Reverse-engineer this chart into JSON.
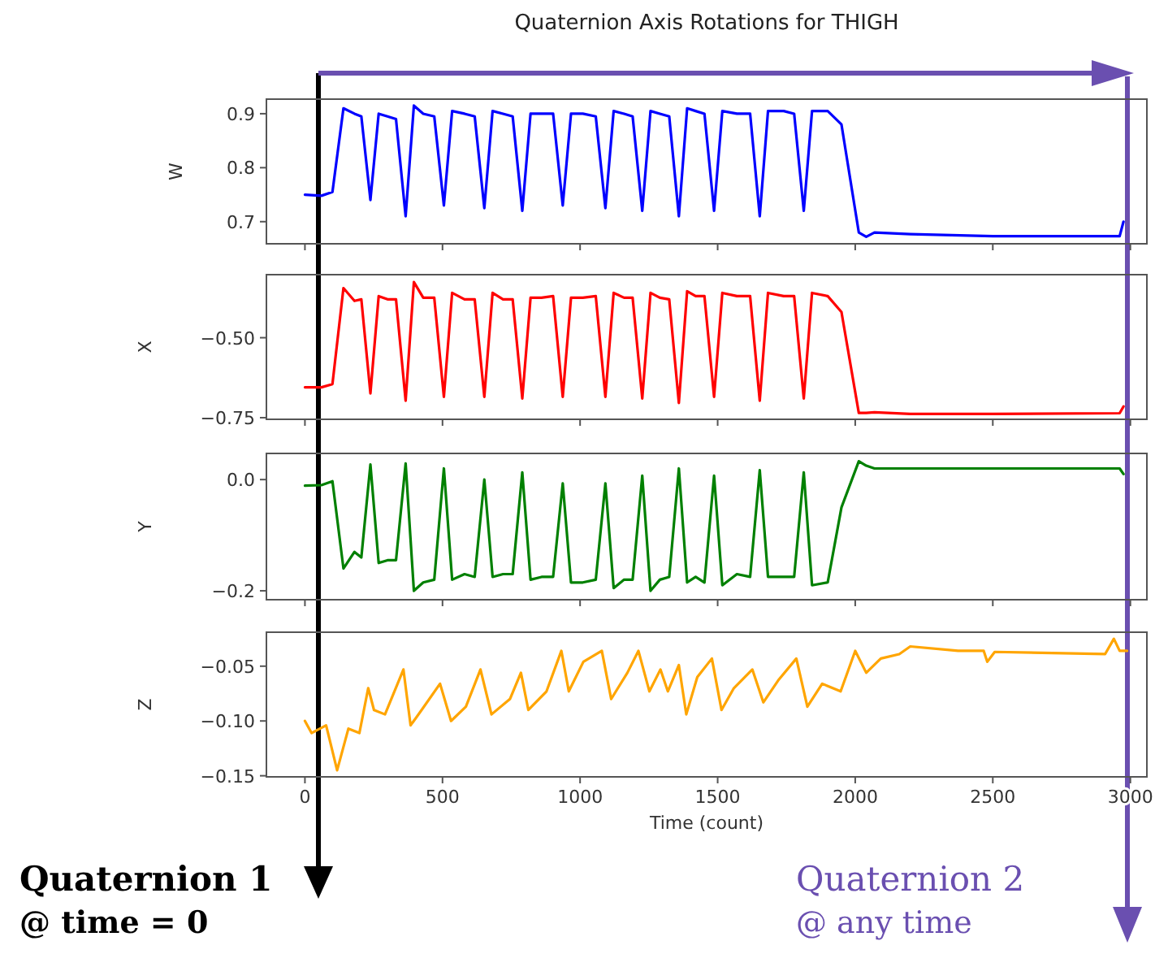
{
  "chart_data": [
    {
      "type": "line",
      "title": "Quaternion Axis Rotations for THIGH",
      "ylabel": "W",
      "xlim": [
        -140,
        3060
      ],
      "ylim": [
        0.659,
        0.927
      ],
      "yticks": [
        {
          "value": 0.7,
          "label": "0.7"
        },
        {
          "value": 0.8,
          "label": "0.8"
        },
        {
          "value": 0.9,
          "label": "0.9"
        }
      ],
      "xticks": [
        {
          "value": 0,
          "label": null
        },
        {
          "value": 500,
          "label": null
        },
        {
          "value": 1000,
          "label": null
        },
        {
          "value": 1500,
          "label": null
        },
        {
          "value": 2000,
          "label": null
        },
        {
          "value": 2500,
          "label": null
        },
        {
          "value": 3000,
          "label": null
        }
      ],
      "tick_labels": "y",
      "grid": false,
      "series": [
        {
          "color": "#0000ff",
          "x": [
            0,
            60,
            100,
            140,
            180,
            205,
            238,
            268,
            300,
            331,
            366,
            396,
            430,
            470,
            505,
            535,
            580,
            617,
            652,
            682,
            720,
            755,
            790,
            820,
            860,
            902,
            937,
            967,
            1010,
            1057,
            1092,
            1122,
            1160,
            1191,
            1226,
            1256,
            1290,
            1324,
            1359,
            1389,
            1420,
            1452,
            1487,
            1517,
            1570,
            1618,
            1653,
            1683,
            1740,
            1778,
            1813,
            1843,
            1900,
            1950,
            2013,
            2040,
            2070,
            2200,
            2500,
            2961,
            2975
          ],
          "values": [
            0.75,
            0.748,
            0.755,
            0.91,
            0.9,
            0.895,
            0.74,
            0.9,
            0.895,
            0.89,
            0.71,
            0.915,
            0.9,
            0.895,
            0.73,
            0.905,
            0.9,
            0.895,
            0.725,
            0.905,
            0.9,
            0.895,
            0.72,
            0.9,
            0.9,
            0.9,
            0.73,
            0.9,
            0.9,
            0.895,
            0.725,
            0.905,
            0.9,
            0.895,
            0.72,
            0.905,
            0.9,
            0.895,
            0.71,
            0.91,
            0.905,
            0.9,
            0.72,
            0.905,
            0.9,
            0.9,
            0.71,
            0.905,
            0.905,
            0.9,
            0.72,
            0.905,
            0.905,
            0.88,
            0.68,
            0.672,
            0.68,
            0.677,
            0.673,
            0.673,
            0.7
          ]
        }
      ]
    },
    {
      "type": "line",
      "ylabel": "X",
      "xlim": [
        -140,
        3060
      ],
      "ylim": [
        -0.755,
        -0.303
      ],
      "yticks": [
        {
          "value": -0.75,
          "label": "−0.75"
        },
        {
          "value": -0.5,
          "label": "−0.50"
        }
      ],
      "xticks": [
        {
          "value": 0,
          "label": null
        },
        {
          "value": 500,
          "label": null
        },
        {
          "value": 1000,
          "label": null
        },
        {
          "value": 1500,
          "label": null
        },
        {
          "value": 2000,
          "label": null
        },
        {
          "value": 2500,
          "label": null
        },
        {
          "value": 3000,
          "label": null
        }
      ],
      "tick_labels": "y",
      "grid": false,
      "series": [
        {
          "color": "#ff0000",
          "x": [
            0,
            60,
            100,
            140,
            180,
            205,
            238,
            268,
            300,
            331,
            366,
            396,
            430,
            470,
            505,
            535,
            580,
            617,
            652,
            682,
            720,
            755,
            790,
            820,
            860,
            902,
            937,
            967,
            1010,
            1057,
            1092,
            1122,
            1160,
            1191,
            1226,
            1256,
            1290,
            1324,
            1359,
            1389,
            1420,
            1452,
            1487,
            1517,
            1570,
            1618,
            1653,
            1683,
            1740,
            1778,
            1813,
            1843,
            1900,
            1950,
            2013,
            2040,
            2070,
            2200,
            2500,
            2961,
            2975
          ],
          "values": [
            -0.655,
            -0.655,
            -0.645,
            -0.345,
            -0.385,
            -0.38,
            -0.674,
            -0.37,
            -0.38,
            -0.38,
            -0.697,
            -0.326,
            -0.375,
            -0.375,
            -0.685,
            -0.36,
            -0.38,
            -0.38,
            -0.685,
            -0.36,
            -0.38,
            -0.38,
            -0.69,
            -0.375,
            -0.375,
            -0.37,
            -0.685,
            -0.375,
            -0.375,
            -0.37,
            -0.685,
            -0.36,
            -0.375,
            -0.375,
            -0.69,
            -0.36,
            -0.375,
            -0.38,
            -0.704,
            -0.355,
            -0.37,
            -0.37,
            -0.685,
            -0.36,
            -0.37,
            -0.37,
            -0.697,
            -0.36,
            -0.37,
            -0.37,
            -0.69,
            -0.36,
            -0.37,
            -0.42,
            -0.735,
            -0.735,
            -0.733,
            -0.738,
            -0.738,
            -0.736,
            -0.715
          ]
        }
      ]
    },
    {
      "type": "line",
      "ylabel": "Y",
      "xlim": [
        -140,
        3060
      ],
      "ylim": [
        -0.216,
        0.047
      ],
      "yticks": [
        {
          "value": -0.2,
          "label": "−0.2"
        },
        {
          "value": 0,
          "label": "0.0"
        }
      ],
      "xticks": [
        {
          "value": 0,
          "label": null
        },
        {
          "value": 500,
          "label": null
        },
        {
          "value": 1000,
          "label": null
        },
        {
          "value": 1500,
          "label": null
        },
        {
          "value": 2000,
          "label": null
        },
        {
          "value": 2500,
          "label": null
        },
        {
          "value": 3000,
          "label": null
        }
      ],
      "tick_labels": "y",
      "grid": false,
      "series": [
        {
          "color": "#008000",
          "x": [
            0,
            60,
            100,
            140,
            180,
            205,
            238,
            268,
            300,
            331,
            366,
            396,
            430,
            470,
            505,
            535,
            580,
            617,
            652,
            682,
            720,
            755,
            790,
            820,
            860,
            902,
            937,
            967,
            1010,
            1057,
            1092,
            1122,
            1160,
            1191,
            1226,
            1256,
            1290,
            1324,
            1359,
            1389,
            1420,
            1452,
            1487,
            1517,
            1570,
            1618,
            1653,
            1683,
            1740,
            1778,
            1813,
            1843,
            1900,
            1950,
            2013,
            2040,
            2070,
            2200,
            2500,
            2961,
            2975
          ],
          "values": [
            -0.011,
            -0.01,
            -0.003,
            -0.16,
            -0.13,
            -0.14,
            0.027,
            -0.15,
            -0.145,
            -0.145,
            0.029,
            -0.2,
            -0.185,
            -0.18,
            0.02,
            -0.18,
            -0.17,
            -0.175,
            0.0,
            -0.175,
            -0.17,
            -0.17,
            0.013,
            -0.18,
            -0.175,
            -0.175,
            -0.007,
            -0.185,
            -0.185,
            -0.18,
            -0.007,
            -0.195,
            -0.18,
            -0.18,
            0.007,
            -0.2,
            -0.18,
            -0.175,
            0.02,
            -0.185,
            -0.175,
            -0.185,
            0.007,
            -0.19,
            -0.17,
            -0.175,
            0.017,
            -0.175,
            -0.175,
            -0.175,
            0.013,
            -0.19,
            -0.185,
            -0.05,
            0.033,
            0.025,
            0.02,
            0.02,
            0.02,
            0.02,
            0.01
          ]
        }
      ]
    },
    {
      "type": "line",
      "ylabel": "Z",
      "xlabel": "Time (count)",
      "xlim": [
        -140,
        3060
      ],
      "ylim": [
        -0.151,
        -0.019
      ],
      "yticks": [
        {
          "value": -0.15,
          "label": "−0.15"
        },
        {
          "value": -0.1,
          "label": "−0.10"
        },
        {
          "value": -0.05,
          "label": "−0.05"
        }
      ],
      "xticks": [
        0,
        500,
        1000,
        1500,
        2000,
        2500,
        3000
      ],
      "grid": false,
      "annotations": [
        "Quaternion 1\n@ time = 0",
        "Quaternion 2\n@ any time"
      ],
      "series": [
        {
          "color": "#ffa500",
          "x": [
            0,
            24,
            77,
            117,
            158,
            198,
            230,
            251,
            291,
            358,
            384,
            424,
            491,
            531,
            585,
            638,
            678,
            745,
            785,
            812,
            878,
            932,
            959,
            1012,
            1079,
            1113,
            1172,
            1212,
            1252,
            1292,
            1319,
            1359,
            1386,
            1426,
            1479,
            1514,
            1559,
            1626,
            1666,
            1720,
            1786,
            1826,
            1880,
            1947,
            2000,
            2040,
            2093,
            2160,
            2200,
            2374,
            2467,
            2480,
            2507,
            2908,
            2940,
            2961,
            2988
          ],
          "values": [
            -0.1,
            -0.111,
            -0.104,
            -0.145,
            -0.107,
            -0.111,
            -0.07,
            -0.09,
            -0.094,
            -0.053,
            -0.104,
            -0.09,
            -0.066,
            -0.1,
            -0.087,
            -0.053,
            -0.094,
            -0.08,
            -0.056,
            -0.09,
            -0.073,
            -0.036,
            -0.073,
            -0.046,
            -0.036,
            -0.08,
            -0.056,
            -0.036,
            -0.073,
            -0.053,
            -0.073,
            -0.049,
            -0.094,
            -0.06,
            -0.043,
            -0.09,
            -0.07,
            -0.053,
            -0.083,
            -0.063,
            -0.043,
            -0.087,
            -0.066,
            -0.073,
            -0.036,
            -0.056,
            -0.043,
            -0.039,
            -0.032,
            -0.036,
            -0.036,
            -0.046,
            -0.037,
            -0.039,
            -0.025,
            -0.036,
            -0.036
          ]
        }
      ]
    }
  ]
}
